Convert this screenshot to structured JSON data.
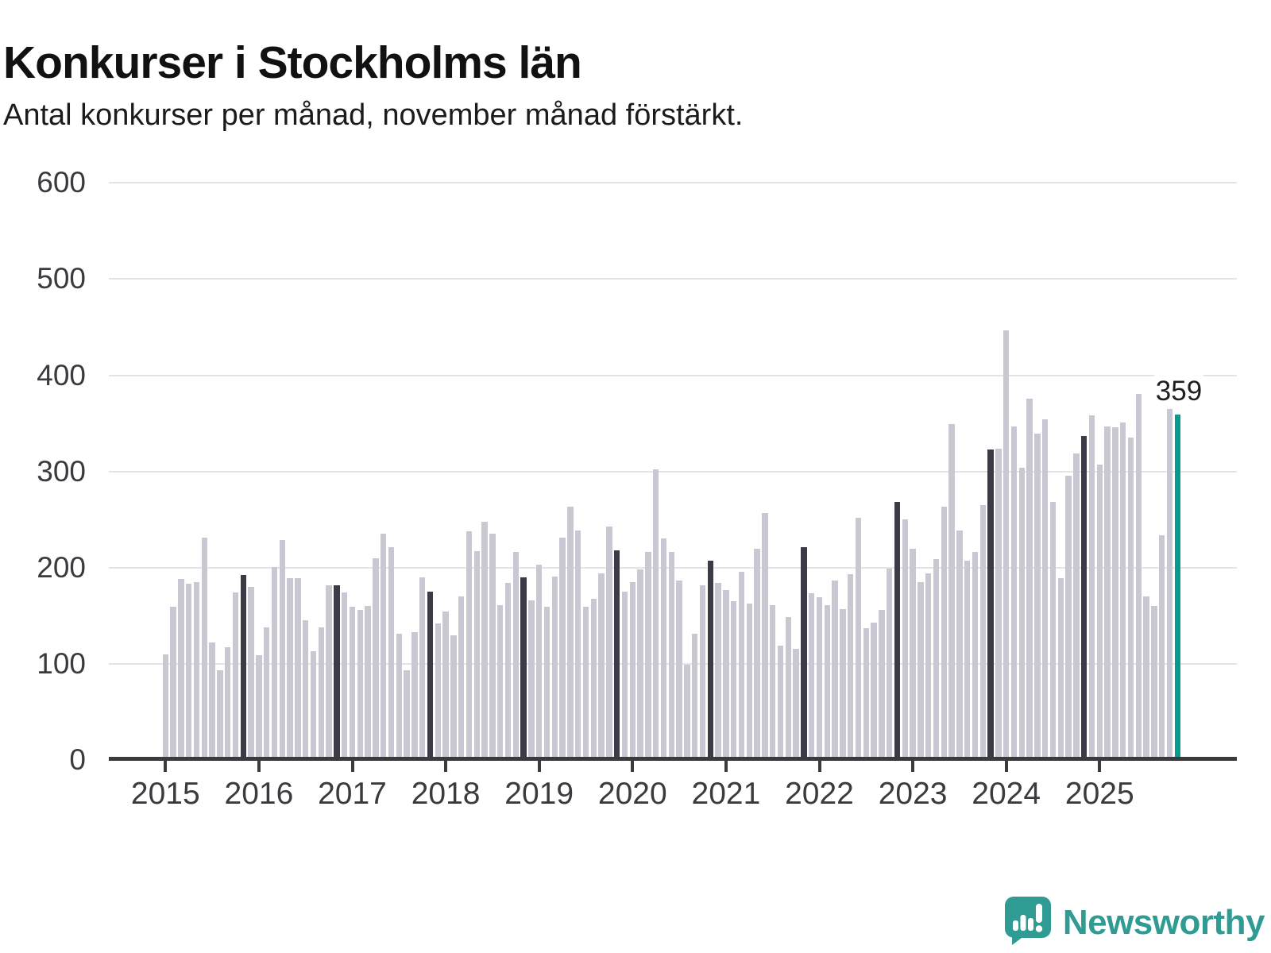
{
  "title": "Konkurser i Stockholms län",
  "subtitle": "Antal konkurser per månad, november månad förstärkt.",
  "annotation": {
    "label": "359"
  },
  "brand": {
    "name": "Newsworthy"
  },
  "colors": {
    "bar_default": "#c9c7d2",
    "bar_november": "#3b3a46",
    "bar_highlight": "#089a8c",
    "axis": "#3a3a3f",
    "gridline": "#e4e4e7",
    "logo_teal": "#2f9b93"
  },
  "chart_data": {
    "type": "bar",
    "title": "Konkurser i Stockholms län",
    "subtitle": "Antal konkurser per månad, november månad förstärkt.",
    "ylabel": "Antal konkurser per månad",
    "xlabel": "",
    "ylim": [
      0,
      600
    ],
    "yticks": [
      0,
      100,
      200,
      300,
      400,
      500,
      600
    ],
    "grid": "horizontal",
    "x_start": "2015-01",
    "x_end": "2025-11",
    "highlight": {
      "year": 2025,
      "month_index": 10,
      "value": 359,
      "label": "359"
    },
    "emphasized_month_index": 10,
    "year_labels": [
      "2015",
      "2016",
      "2017",
      "2018",
      "2019",
      "2020",
      "2021",
      "2022",
      "2023",
      "2024",
      "2025"
    ],
    "series": [
      {
        "year": 2015,
        "values": [
          110,
          159,
          188,
          183,
          185,
          231,
          122,
          93,
          117,
          174,
          192,
          180
        ]
      },
      {
        "year": 2016,
        "values": [
          109,
          138,
          201,
          229,
          189,
          189,
          145,
          113,
          138,
          182,
          182,
          174
        ]
      },
      {
        "year": 2017,
        "values": [
          159,
          156,
          160,
          210,
          235,
          221,
          131,
          93,
          133,
          190,
          175,
          142
        ]
      },
      {
        "year": 2018,
        "values": [
          154,
          130,
          170,
          238,
          217,
          248,
          235,
          161,
          184,
          216,
          190,
          166
        ]
      },
      {
        "year": 2019,
        "values": [
          203,
          159,
          191,
          231,
          263,
          239,
          159,
          168,
          194,
          243,
          218,
          175
        ]
      },
      {
        "year": 2020,
        "values": [
          185,
          198,
          216,
          302,
          230,
          216,
          187,
          99,
          131,
          182,
          207,
          184
        ]
      },
      {
        "year": 2021,
        "values": [
          177,
          165,
          196,
          163,
          220,
          257,
          161,
          119,
          149,
          116,
          221,
          173
        ]
      },
      {
        "year": 2022,
        "values": [
          169,
          161,
          187,
          157,
          193,
          252,
          137,
          143,
          156,
          199,
          268,
          250
        ]
      },
      {
        "year": 2023,
        "values": [
          220,
          185,
          194,
          209,
          263,
          349,
          239,
          207,
          216,
          265,
          323,
          324
        ]
      },
      {
        "year": 2024,
        "values": [
          447,
          347,
          304,
          376,
          339,
          354,
          268,
          189,
          296,
          319,
          337,
          358
        ]
      },
      {
        "year": 2025,
        "values": [
          307,
          347,
          346,
          351,
          335,
          381,
          170,
          160,
          234,
          369,
          359
        ]
      }
    ]
  }
}
